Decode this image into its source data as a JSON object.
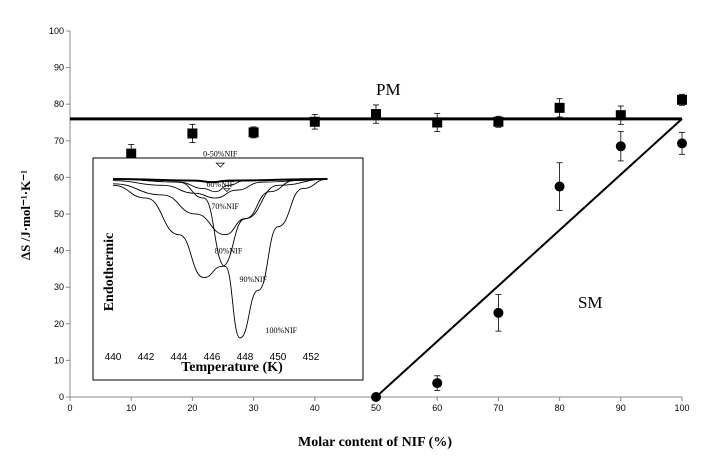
{
  "chart_data": [
    {
      "type": "scatter",
      "title": "",
      "xlabel": "Molar content of NIF (%)",
      "ylabel": "ΔS /J·mol⁻¹·K⁻¹",
      "xlim": [
        0,
        100
      ],
      "ylim": [
        0,
        100
      ],
      "x_ticks": [
        "0",
        "10",
        "20",
        "30",
        "40",
        "50",
        "60",
        "70",
        "80",
        "90",
        "100"
      ],
      "y_ticks": [
        "0",
        "10",
        "20",
        "30",
        "40",
        "50",
        "60",
        "70",
        "80",
        "90",
        "100"
      ],
      "grid": false,
      "series": [
        {
          "marker": "square",
          "points": [
            {
              "x": 10,
              "y": 66.5,
              "err": 2.5
            },
            {
              "x": 20,
              "y": 72,
              "err": 2.5
            },
            {
              "x": 30,
              "y": 72.3,
              "err": 1.5
            },
            {
              "x": 40,
              "y": 75.2,
              "err": 2
            },
            {
              "x": 50,
              "y": 77.3,
              "err": 2.5
            },
            {
              "x": 60,
              "y": 75,
              "err": 2.5
            },
            {
              "x": 70,
              "y": 75.2,
              "err": 1.5
            },
            {
              "x": 80,
              "y": 79,
              "err": 2.5
            },
            {
              "x": 90,
              "y": 77,
              "err": 2.5
            },
            {
              "x": 100,
              "y": 81.2,
              "err": 1.5
            }
          ]
        },
        {
          "marker": "circle",
          "points": [
            {
              "x": 50,
              "y": 0,
              "err": 0
            },
            {
              "x": 60,
              "y": 3.8,
              "err": 2
            },
            {
              "x": 70,
              "y": 23,
              "err": 5
            },
            {
              "x": 80,
              "y": 57.5,
              "err": 6.5
            },
            {
              "x": 90,
              "y": 68.5,
              "err": 4
            },
            {
              "x": 100,
              "y": 69.3,
              "err": 3
            }
          ]
        }
      ],
      "lines": [
        {
          "label": "PM",
          "points": [
            [
              0,
              76
            ],
            [
              100,
              76
            ]
          ]
        },
        {
          "label": "SM",
          "points": [
            [
              50,
              0
            ],
            [
              100,
              76
            ]
          ]
        }
      ],
      "annotations": [
        {
          "text": "PM",
          "x": 83,
          "y": 82
        },
        {
          "text": "SM",
          "x": 150,
          "y": 26
        }
      ]
    },
    {
      "type": "line",
      "title": "",
      "xlabel": "Temperature (K)",
      "ylabel": "Endothermic",
      "xlim": [
        439.5,
        453.5
      ],
      "x_ticks": [
        "440",
        "442",
        "444",
        "446",
        "448",
        "450",
        "452"
      ],
      "series": [
        {
          "name": "0-50%NIF",
          "points": [
            [
              440,
              0
            ],
            [
              445,
              -0.01
            ],
            [
              446,
              -0.02
            ],
            [
              447,
              -0.01
            ],
            [
              453,
              0
            ]
          ]
        },
        {
          "name": "60%NIF",
          "points": [
            [
              440,
              0
            ],
            [
              444,
              -0.02
            ],
            [
              445.5,
              -0.06
            ],
            [
              446.2,
              -0.08
            ],
            [
              447,
              -0.04
            ],
            [
              448,
              -0.01
            ],
            [
              453,
              0
            ]
          ]
        },
        {
          "name": "70%NIF",
          "points": [
            [
              440,
              -0.01
            ],
            [
              443,
              -0.04
            ],
            [
              445,
              -0.09
            ],
            [
              446.2,
              -0.12
            ],
            [
              447.5,
              -0.07
            ],
            [
              449,
              -0.02
            ],
            [
              453,
              0
            ]
          ]
        },
        {
          "name": "80%NIF",
          "points": [
            [
              440,
              -0.03
            ],
            [
              443,
              -0.1
            ],
            [
              445,
              -0.22
            ],
            [
              446.8,
              -0.35
            ],
            [
              448,
              -0.25
            ],
            [
              449.5,
              -0.08
            ],
            [
              451,
              -0.01
            ],
            [
              453,
              0
            ]
          ]
        },
        {
          "name": "90%NIF",
          "points": [
            [
              440,
              -0.04
            ],
            [
              442,
              -0.12
            ],
            [
              444,
              -0.35
            ],
            [
              445.5,
              -0.62
            ],
            [
              446.6,
              -0.55
            ],
            [
              448,
              -0.25
            ],
            [
              450,
              -0.04
            ],
            [
              453,
              0
            ]
          ]
        },
        {
          "name": "100%NIF",
          "points": [
            [
              440,
              0
            ],
            [
              444,
              -0.02
            ],
            [
              445.5,
              -0.12
            ],
            [
              446.8,
              -0.55
            ],
            [
              447.7,
              -1
            ],
            [
              448.8,
              -0.7
            ],
            [
              450,
              -0.3
            ],
            [
              451.5,
              -0.06
            ],
            [
              453,
              0
            ]
          ]
        }
      ],
      "curve_labels": [
        {
          "text": "0-50%NIF",
          "x": 446.5,
          "y": 0.13
        },
        {
          "text": "60%NIF",
          "x": 446.5,
          "y": -0.03
        },
        {
          "text": "70%NIF",
          "x": 446.8,
          "y": -0.17
        },
        {
          "text": "80%NIF",
          "x": 447,
          "y": -0.45
        },
        {
          "text": "90%NIF",
          "x": 448.5,
          "y": -0.63
        },
        {
          "text": "100%NIF",
          "x": 450.2,
          "y": -0.95
        }
      ]
    }
  ]
}
